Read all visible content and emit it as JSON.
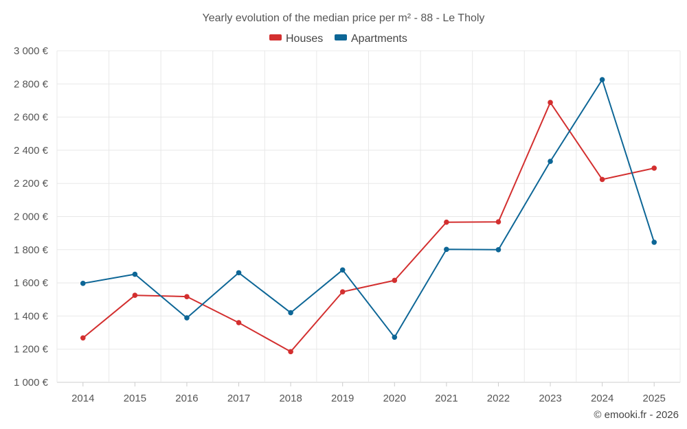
{
  "chart_data": {
    "type": "line",
    "title": "Yearly evolution of the median price per m² - 88 - Le Tholy",
    "categories": [
      "2014",
      "2015",
      "2016",
      "2017",
      "2018",
      "2019",
      "2020",
      "2021",
      "2022",
      "2023",
      "2024",
      "2025"
    ],
    "series": [
      {
        "name": "Houses",
        "color": "#d32f2f",
        "values": [
          1268,
          1525,
          1517,
          1360,
          1185,
          1546,
          1615,
          1966,
          1968,
          2688,
          2224,
          2292
        ]
      },
      {
        "name": "Apartments",
        "color": "#0d6696",
        "values": [
          1597,
          1652,
          1389,
          1661,
          1420,
          1678,
          1272,
          1802,
          1800,
          2333,
          2826,
          1845
        ]
      }
    ],
    "ylim": [
      1000,
      3000
    ],
    "yticks": [
      1000,
      1200,
      1400,
      1600,
      1800,
      2000,
      2200,
      2400,
      2600,
      2800,
      3000
    ],
    "ytick_labels": [
      "1 000 €",
      "1 200 €",
      "1 400 €",
      "1 600 €",
      "1 800 €",
      "2 000 €",
      "2 200 €",
      "2 400 €",
      "2 600 €",
      "2 800 €",
      "3 000 €"
    ],
    "xlabel": "",
    "ylabel": "",
    "grid": true,
    "legend_position": "top-center"
  },
  "credit": "© emooki.fr - 2026"
}
